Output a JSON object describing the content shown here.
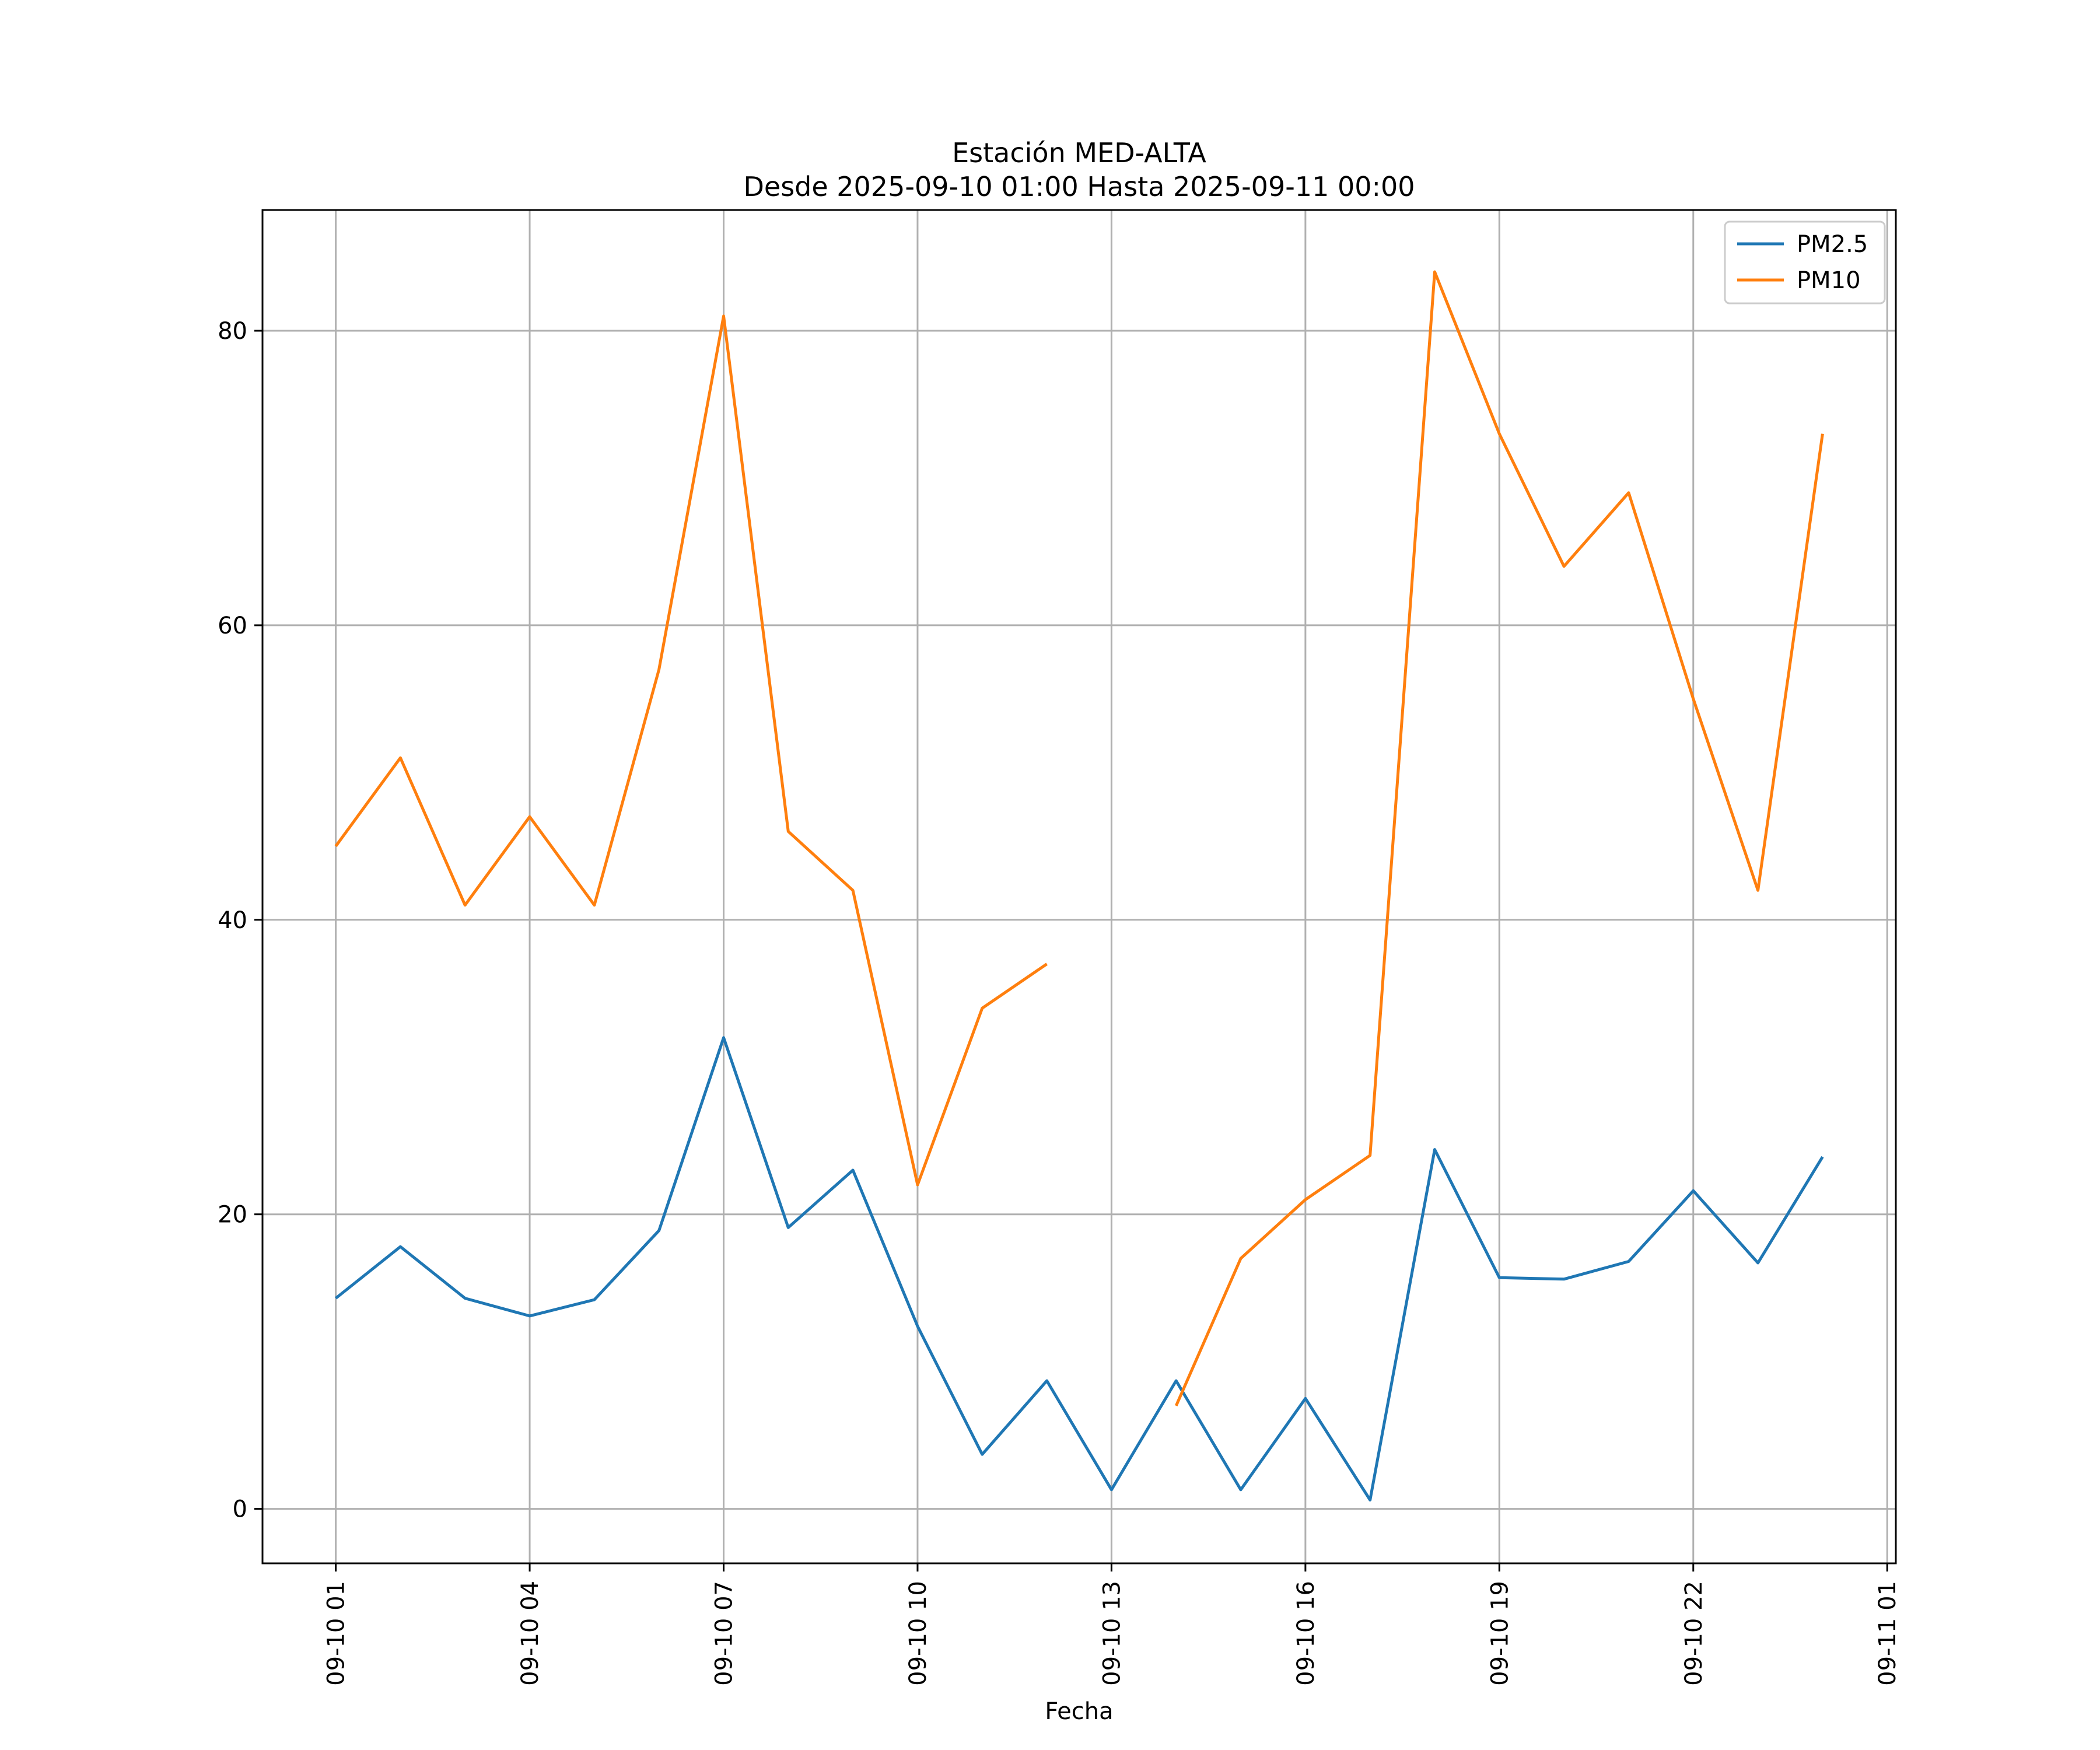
{
  "chart_data": {
    "type": "line",
    "title": "Estación MED-ALTA",
    "subtitle": "Desde 2025-09-10 01:00 Hasta 2025-09-11 00:00",
    "xlabel": "Fecha",
    "ylabel": "",
    "x": [
      "2025-09-10 01:00",
      "2025-09-10 02:00",
      "2025-09-10 03:00",
      "2025-09-10 04:00",
      "2025-09-10 05:00",
      "2025-09-10 06:00",
      "2025-09-10 07:00",
      "2025-09-10 08:00",
      "2025-09-10 09:00",
      "2025-09-10 10:00",
      "2025-09-10 11:00",
      "2025-09-10 12:00",
      "2025-09-10 13:00",
      "2025-09-10 14:00",
      "2025-09-10 15:00",
      "2025-09-10 16:00",
      "2025-09-10 17:00",
      "2025-09-10 18:00",
      "2025-09-10 19:00",
      "2025-09-10 20:00",
      "2025-09-10 21:00",
      "2025-09-10 22:00",
      "2025-09-10 23:00",
      "2025-09-11 00:00"
    ],
    "x_ticks": [
      "09-10 01",
      "09-10 04",
      "09-10 07",
      "09-10 10",
      "09-10 13",
      "09-10 16",
      "09-10 19",
      "09-10 22",
      "09-11 01"
    ],
    "x_tick_values": [
      "2025-09-10 01:00",
      "2025-09-10 04:00",
      "2025-09-10 07:00",
      "2025-09-10 10:00",
      "2025-09-10 13:00",
      "2025-09-10 16:00",
      "2025-09-10 19:00",
      "2025-09-10 22:00",
      "2025-09-11 01:00"
    ],
    "xlim": [
      "2025-09-09 23:52",
      "2025-09-11 01:08"
    ],
    "y_ticks": [
      0,
      20,
      40,
      60,
      80
    ],
    "ylim": [
      -3.7,
      88.2
    ],
    "grid": true,
    "legend": "top-right",
    "series": [
      {
        "name": "PM2.5",
        "color": "#1f77b4",
        "values": [
          14.3,
          17.8,
          14.3,
          13.1,
          14.2,
          18.9,
          32.0,
          19.1,
          23.0,
          12.4,
          3.7,
          8.7,
          1.3,
          8.7,
          1.3,
          7.5,
          0.6,
          24.4,
          15.7,
          15.6,
          16.8,
          21.6,
          16.7,
          23.9
        ]
      },
      {
        "name": "PM10",
        "color": "#ff7f0e",
        "values": [
          45,
          51,
          41,
          47,
          41,
          57,
          81,
          46,
          42,
          22,
          34,
          37,
          null,
          7,
          17,
          21,
          24,
          84,
          73,
          64,
          69,
          55,
          42,
          73
        ]
      }
    ]
  }
}
